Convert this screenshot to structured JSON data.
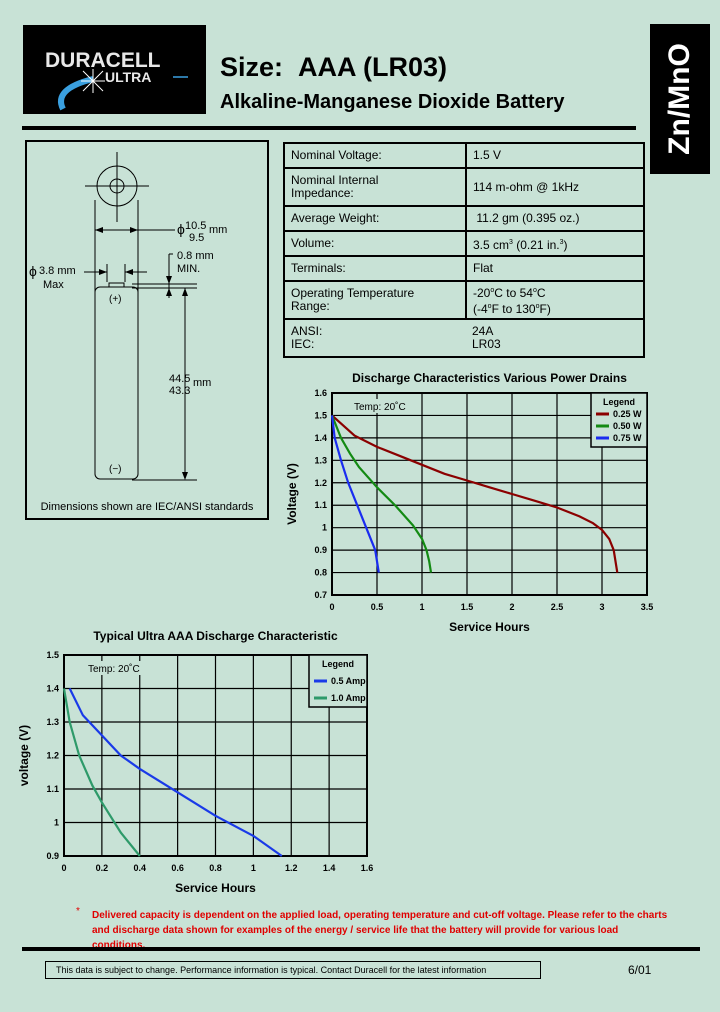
{
  "logo": {
    "brand": "DURACELL",
    "sub": "ULTRA"
  },
  "header": {
    "size_label": "Size:",
    "size_value": "AAA (LR03)",
    "subtitle": "Alkaline-Manganese Dioxide Battery",
    "chemistry": "Zn/MnO"
  },
  "diagram": {
    "dia_main_top": "10.5",
    "dia_main_bottom": "9.5",
    "dia_main_unit": "mm",
    "phi": "ϕ",
    "nub_height": "0.8 mm",
    "nub_min": "MIN.",
    "nub_dia": "3.8 mm",
    "nub_max": "Max",
    "len_top": "44.5",
    "len_bottom": "43.3",
    "len_unit": "mm",
    "plus": "(+)",
    "minus": "(−)",
    "caption": "Dimensions shown are IEC/ANSI standards"
  },
  "specs": {
    "voltage": {
      "label": "Nominal Voltage:",
      "value": "1.5  V"
    },
    "impedance": {
      "label1": "Nominal Internal",
      "label2": "Impedance:",
      "value": "114 m-ohm @ 1kHz"
    },
    "weight": {
      "label": "Average Weight:",
      "value": " 11.2 gm (0.395 oz.)"
    },
    "volume": {
      "label": "Volume:",
      "value_a": "3.5 cm",
      "sup_a": "3",
      "value_b": " (0.21 in.",
      "sup_b": "3",
      "value_c": ")"
    },
    "terminals": {
      "label": "Terminals:",
      "value": "Flat"
    },
    "temp": {
      "label1": "Operating Temperature",
      "label2": "Range:",
      "v1a": "-20",
      "v1b": "C to 54",
      "v1c": "C",
      "v2a": "(-4",
      "v2b": "F to 130",
      "v2c": "F)",
      "deg": "o"
    },
    "ansi": {
      "label": "ANSI:",
      "value": "24A"
    },
    "iec": {
      "label": "IEC:",
      "value": "LR03"
    }
  },
  "chart_data": [
    {
      "type": "line",
      "title": "Discharge Characteristics Various Power Drains",
      "xlabel": "Service Hours",
      "ylabel": "Voltage (V)",
      "xlim": [
        0,
        3.5
      ],
      "ylim": [
        0.7,
        1.6
      ],
      "xticks": [
        "0",
        "0.5",
        "1",
        "1.5",
        "2",
        "2.5",
        "3",
        "3.5"
      ],
      "yticks": [
        "0.7",
        "0.8",
        "0.9",
        "1",
        "1.1",
        "1.2",
        "1.3",
        "1.4",
        "1.5",
        "1.6"
      ],
      "grid": true,
      "annotation": "Temp: 20˚C",
      "legend_title": "Legend",
      "legend_position": "top-right",
      "series": [
        {
          "name": "0.25 W",
          "color": "#8b0000",
          "points": [
            [
              0,
              1.5
            ],
            [
              0.25,
              1.41
            ],
            [
              0.5,
              1.36
            ],
            [
              0.75,
              1.32
            ],
            [
              1,
              1.28
            ],
            [
              1.25,
              1.24
            ],
            [
              1.5,
              1.21
            ],
            [
              1.75,
              1.18
            ],
            [
              2,
              1.15
            ],
            [
              2.25,
              1.12
            ],
            [
              2.5,
              1.09
            ],
            [
              2.75,
              1.05
            ],
            [
              2.9,
              1.02
            ],
            [
              3,
              0.99
            ],
            [
              3.08,
              0.95
            ],
            [
              3.13,
              0.9
            ],
            [
              3.15,
              0.85
            ],
            [
              3.17,
              0.8
            ]
          ]
        },
        {
          "name": "0.50 W",
          "color": "#138a13",
          "points": [
            [
              0,
              1.5
            ],
            [
              0.1,
              1.4
            ],
            [
              0.2,
              1.33
            ],
            [
              0.3,
              1.27
            ],
            [
              0.5,
              1.18
            ],
            [
              0.7,
              1.1
            ],
            [
              0.9,
              1.01
            ],
            [
              1,
              0.95
            ],
            [
              1.05,
              0.9
            ],
            [
              1.08,
              0.85
            ],
            [
              1.1,
              0.8
            ]
          ]
        },
        {
          "name": "0.75 W",
          "color": "#1a2cf0",
          "points": [
            [
              0,
              1.5
            ],
            [
              0.03,
              1.4
            ],
            [
              0.1,
              1.3
            ],
            [
              0.18,
              1.2
            ],
            [
              0.28,
              1.1
            ],
            [
              0.38,
              1.0
            ],
            [
              0.48,
              0.9
            ],
            [
              0.5,
              0.85
            ],
            [
              0.52,
              0.8
            ]
          ]
        }
      ]
    },
    {
      "type": "line",
      "title": "Typical Ultra AAA Discharge Characteristic",
      "xlabel": "Service Hours",
      "ylabel": "voltage (V)",
      "xlim": [
        0,
        1.6
      ],
      "ylim": [
        0.9,
        1.5
      ],
      "xticks": [
        "0",
        "0.2",
        "0.4",
        "0.6",
        "0.8",
        "1",
        "1.2",
        "1.4",
        "1.6"
      ],
      "yticks": [
        "0.9",
        "1",
        "1.1",
        "1.2",
        "1.3",
        "1.4",
        "1.5"
      ],
      "grid": true,
      "annotation": "Temp: 20˚C",
      "legend_title": "Legend",
      "legend_position": "top-right",
      "series": [
        {
          "name": "0.5 Amp",
          "color": "#1a3ae8",
          "points": [
            [
              0.03,
              1.4
            ],
            [
              0.1,
              1.32
            ],
            [
              0.2,
              1.26
            ],
            [
              0.3,
              1.2
            ],
            [
              0.4,
              1.16
            ],
            [
              0.6,
              1.09
            ],
            [
              0.8,
              1.02
            ],
            [
              1,
              0.96
            ],
            [
              1.15,
              0.9
            ]
          ]
        },
        {
          "name": "1.0 Amp",
          "color": "#2e9a6a",
          "points": [
            [
              0,
              1.4
            ],
            [
              0.03,
              1.3
            ],
            [
              0.08,
              1.2
            ],
            [
              0.15,
              1.11
            ],
            [
              0.2,
              1.06
            ],
            [
              0.3,
              0.97
            ],
            [
              0.4,
              0.9
            ]
          ]
        }
      ]
    }
  ],
  "footnote": {
    "star": "*",
    "line1": "Delivered capacity is dependent on the applied load, operating temperature and cut-off voltage.  Please refer to the charts",
    "line2": "and discharge data shown for examples of the energy / service life that the battery will provide for various load conditions."
  },
  "footer": {
    "disclaimer": "This data is subject to change.  Performance information is typical.  Contact Duracell for the latest information",
    "date": "6/01"
  }
}
